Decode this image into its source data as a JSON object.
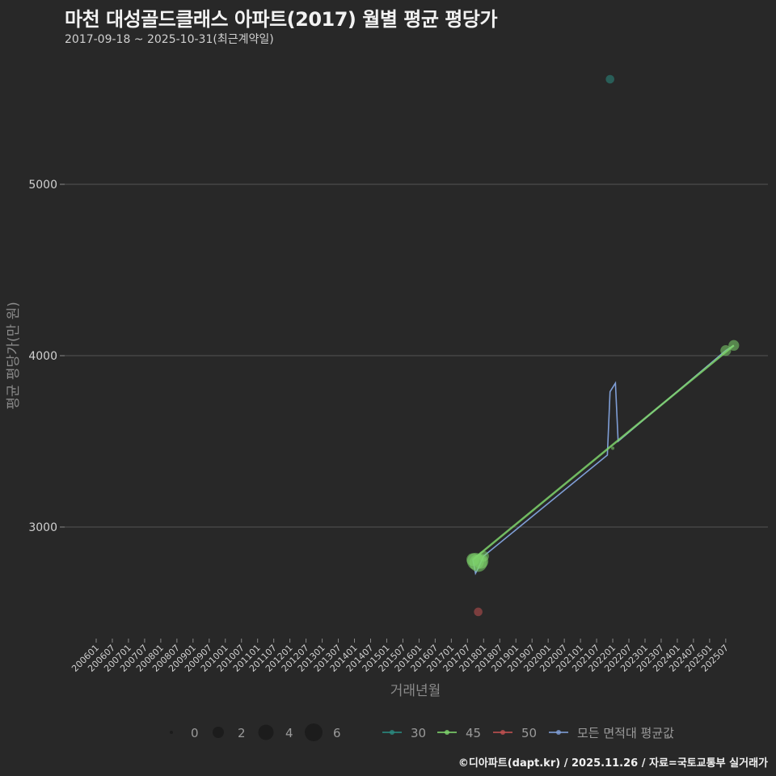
{
  "header": {
    "title": "마천 대성골드클래스 아파트(2017) 월별 평균 평당가",
    "subtitle": "2017-09-18 ~ 2025-10-31(최근계약일)"
  },
  "footer": "©디아파트(dapt.kr) / 2025.11.26 / 자료=국토교통부 실거래가",
  "colors": {
    "background": "#282828",
    "series_30": "#2a8a80",
    "series_45": "#7ed36b",
    "series_50": "#c05050",
    "series_avg": "#7f9ed6",
    "grid": "#555555"
  },
  "legend": {
    "size_title": "",
    "sizes": [
      {
        "label": "0",
        "r": 2
      },
      {
        "label": "2",
        "r": 7
      },
      {
        "label": "4",
        "r": 9.5
      },
      {
        "label": "6",
        "r": 11
      }
    ],
    "series": [
      {
        "label": "30",
        "color": "#2a8a80"
      },
      {
        "label": "45",
        "color": "#7ed36b"
      },
      {
        "label": "50",
        "color": "#c05050"
      },
      {
        "label": "모든 면적대 평균값",
        "color": "#7f9ed6"
      }
    ]
  },
  "chart_data": {
    "type": "line",
    "title": "마천 대성골드클래스 아파트(2017) 월별 평균 평당가",
    "subtitle": "2017-09-18 ~ 2025-10-31(최근계약일)",
    "xlabel": "거래년월",
    "ylabel": "평균 평당가(만 원)",
    "ylim": [
      2400,
      5750
    ],
    "yticks": [
      3000,
      4000,
      5000
    ],
    "grid": "horizontal",
    "legend_position": "bottom",
    "xticks": [
      "200601",
      "200607",
      "200701",
      "200707",
      "200801",
      "200807",
      "200901",
      "200907",
      "201001",
      "201007",
      "201101",
      "201107",
      "201201",
      "201207",
      "201301",
      "201307",
      "201401",
      "201407",
      "201501",
      "201507",
      "201601",
      "201607",
      "201701",
      "201707",
      "201801",
      "201807",
      "201901",
      "201907",
      "202001",
      "202007",
      "202101",
      "202107",
      "202201",
      "202207",
      "202301",
      "202307",
      "202401",
      "202407",
      "202501",
      "202507"
    ],
    "series": [
      {
        "name": "30",
        "points": [
          {
            "x": "202112",
            "y": 5613,
            "count": 1
          }
        ]
      },
      {
        "name": "45",
        "points": [
          {
            "x": "201709",
            "y": 2810,
            "count": 3
          },
          {
            "x": "201710",
            "y": 2800,
            "count": 5
          },
          {
            "x": "201711",
            "y": 2790,
            "count": 6
          },
          {
            "x": "201712",
            "y": 2800,
            "count": 4
          },
          {
            "x": "201801",
            "y": 2830,
            "count": 2
          },
          {
            "x": "202201",
            "y": 3460,
            "count": 0
          },
          {
            "x": "202507",
            "y": 4030,
            "count": 2
          },
          {
            "x": "202510",
            "y": 4060,
            "count": 2
          }
        ]
      },
      {
        "name": "50",
        "points": [
          {
            "x": "201711",
            "y": 2505,
            "count": 1
          }
        ]
      },
      {
        "name": "모든 면적대 평균값",
        "points": [
          {
            "x": "201709",
            "y": 2810
          },
          {
            "x": "201710",
            "y": 2730
          },
          {
            "x": "201711",
            "y": 2760
          },
          {
            "x": "201801",
            "y": 2830
          },
          {
            "x": "202111",
            "y": 3420
          },
          {
            "x": "202112",
            "y": 3790
          },
          {
            "x": "202202",
            "y": 3840
          },
          {
            "x": "202203",
            "y": 3500
          },
          {
            "x": "202507",
            "y": 4030
          },
          {
            "x": "202510",
            "y": 4060
          }
        ]
      }
    ]
  }
}
